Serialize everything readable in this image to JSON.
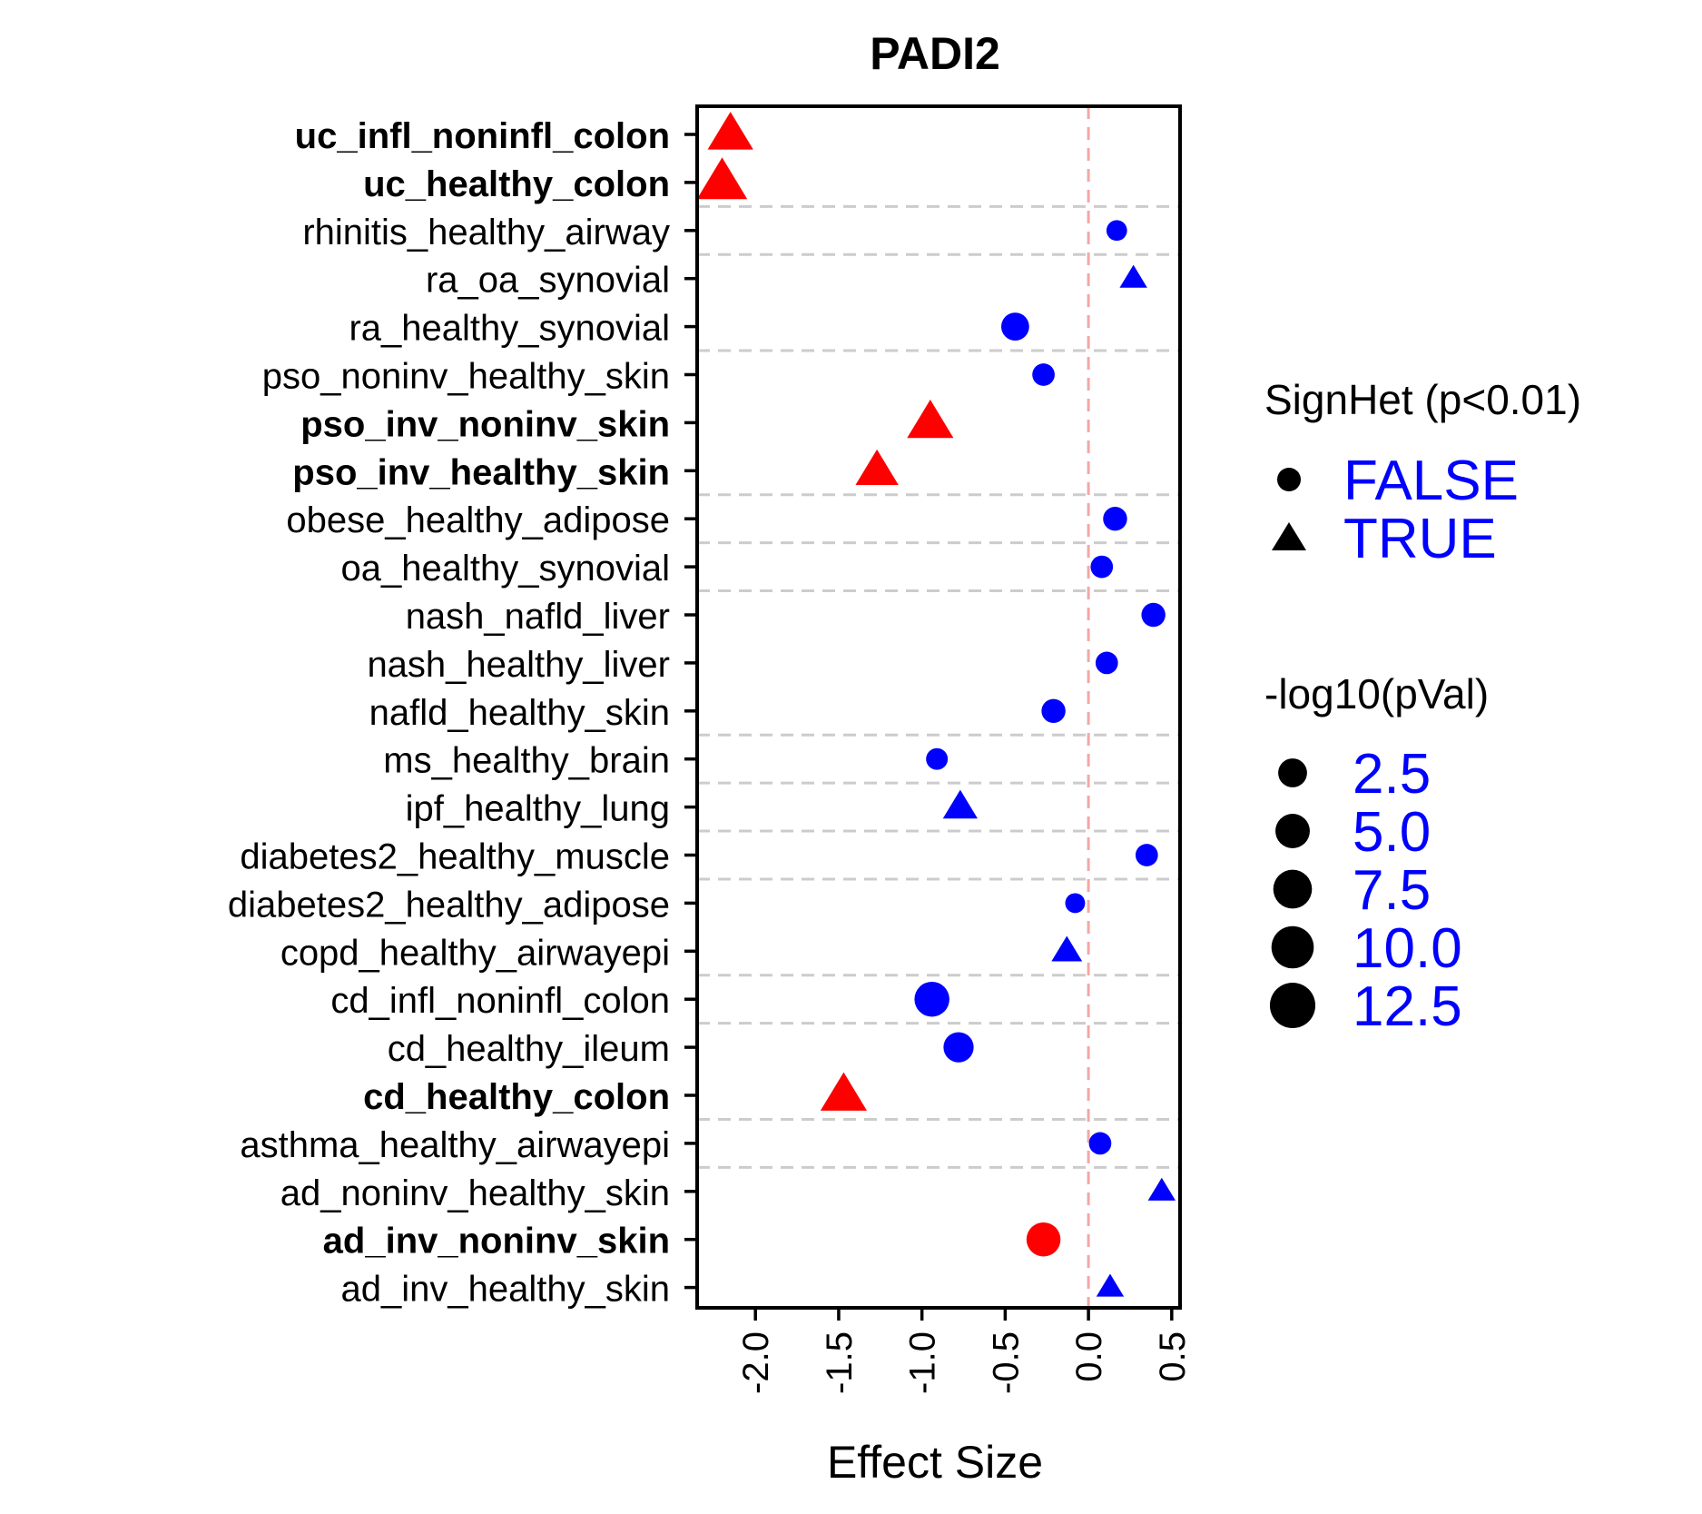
{
  "chart_data": {
    "type": "scatter",
    "title": "PADI2",
    "xlabel": "Effect Size",
    "ylabel": "",
    "xlim": [
      -2.35,
      0.55
    ],
    "x_ticks": [
      "-2.0",
      "-1.5",
      "-1.0",
      "-0.5",
      "0.0",
      "0.5"
    ],
    "x_tick_values": [
      -2.0,
      -1.5,
      -1.0,
      -0.5,
      0.0,
      0.5
    ],
    "reference_line_x": 0.0,
    "grid": "dashed horizontal lines between some rows",
    "legend_position": "right",
    "categories": [
      {
        "label": "uc_infl_noninfl_colon",
        "x": -2.15,
        "sign_het": true,
        "neglog10p": 10.5,
        "bold": true,
        "color": "#ff0000"
      },
      {
        "label": "uc_healthy_colon",
        "x": -2.2,
        "sign_het": true,
        "neglog10p": 13.5,
        "bold": true,
        "color": "#ff0000"
      },
      {
        "label": "rhinitis_healthy_airway",
        "x": 0.17,
        "sign_het": false,
        "neglog10p": 1.5,
        "bold": false,
        "color": "#0000ff"
      },
      {
        "label": "ra_oa_synovial",
        "x": 0.27,
        "sign_het": true,
        "neglog10p": 2.5,
        "bold": false,
        "color": "#0000ff"
      },
      {
        "label": "ra_healthy_synovial",
        "x": -0.44,
        "sign_het": false,
        "neglog10p": 4.0,
        "bold": false,
        "color": "#0000ff"
      },
      {
        "label": "pso_noninv_healthy_skin",
        "x": -0.27,
        "sign_het": false,
        "neglog10p": 2.0,
        "bold": false,
        "color": "#0000ff"
      },
      {
        "label": "pso_inv_noninv_skin",
        "x": -0.95,
        "sign_het": true,
        "neglog10p": 11.0,
        "bold": true,
        "color": "#ff0000"
      },
      {
        "label": "pso_inv_healthy_skin",
        "x": -1.27,
        "sign_het": true,
        "neglog10p": 9.0,
        "bold": true,
        "color": "#ff0000"
      },
      {
        "label": "obese_healthy_adipose",
        "x": 0.16,
        "sign_het": false,
        "neglog10p": 2.5,
        "bold": false,
        "color": "#0000ff"
      },
      {
        "label": "oa_healthy_synovial",
        "x": 0.08,
        "sign_het": false,
        "neglog10p": 2.0,
        "bold": false,
        "color": "#0000ff"
      },
      {
        "label": "nash_nafld_liver",
        "x": 0.39,
        "sign_het": false,
        "neglog10p": 2.5,
        "bold": false,
        "color": "#0000ff"
      },
      {
        "label": "nash_healthy_liver",
        "x": 0.11,
        "sign_het": false,
        "neglog10p": 2.0,
        "bold": false,
        "color": "#0000ff"
      },
      {
        "label": "nafld_healthy_skin",
        "x": -0.21,
        "sign_het": false,
        "neglog10p": 2.5,
        "bold": false,
        "color": "#0000ff"
      },
      {
        "label": "ms_healthy_brain",
        "x": -0.91,
        "sign_het": false,
        "neglog10p": 1.8,
        "bold": false,
        "color": "#0000ff"
      },
      {
        "label": "ipf_healthy_lung",
        "x": -0.77,
        "sign_het": true,
        "neglog10p": 5.0,
        "bold": false,
        "color": "#0000ff"
      },
      {
        "label": "diabetes2_healthy_muscle",
        "x": 0.35,
        "sign_het": false,
        "neglog10p": 2.0,
        "bold": false,
        "color": "#0000ff"
      },
      {
        "label": "diabetes2_healthy_adipose",
        "x": -0.08,
        "sign_het": false,
        "neglog10p": 1.3,
        "bold": false,
        "color": "#0000ff"
      },
      {
        "label": "copd_healthy_airwayepi",
        "x": -0.13,
        "sign_het": true,
        "neglog10p": 3.5,
        "bold": false,
        "color": "#0000ff"
      },
      {
        "label": "cd_infl_noninfl_colon",
        "x": -0.94,
        "sign_het": false,
        "neglog10p": 7.5,
        "bold": false,
        "color": "#0000ff"
      },
      {
        "label": "cd_healthy_ileum",
        "x": -0.78,
        "sign_het": false,
        "neglog10p": 5.0,
        "bold": false,
        "color": "#0000ff"
      },
      {
        "label": "cd_healthy_colon",
        "x": -1.47,
        "sign_het": true,
        "neglog10p": 11.0,
        "bold": true,
        "color": "#ff0000"
      },
      {
        "label": "asthma_healthy_airwayepi",
        "x": 0.07,
        "sign_het": false,
        "neglog10p": 2.0,
        "bold": false,
        "color": "#0000ff"
      },
      {
        "label": "ad_noninv_healthy_skin",
        "x": 0.44,
        "sign_het": true,
        "neglog10p": 2.5,
        "bold": false,
        "color": "#0000ff"
      },
      {
        "label": "ad_inv_noninv_skin",
        "x": -0.27,
        "sign_het": false,
        "neglog10p": 7.0,
        "bold": true,
        "color": "#ff0000"
      },
      {
        "label": "ad_inv_healthy_skin",
        "x": 0.13,
        "sign_het": true,
        "neglog10p": 2.5,
        "bold": false,
        "color": "#0000ff"
      }
    ],
    "dashed_gridlines_between_rows": [
      [
        1,
        2
      ],
      [
        2,
        3
      ],
      [
        4,
        5
      ],
      [
        7,
        8
      ],
      [
        8,
        9
      ],
      [
        9,
        10
      ],
      [
        12,
        13
      ],
      [
        13,
        14
      ],
      [
        14,
        15
      ],
      [
        15,
        16
      ],
      [
        17,
        18
      ],
      [
        18,
        19
      ],
      [
        20,
        21
      ],
      [
        21,
        22
      ]
    ],
    "legends": {
      "shape": {
        "title": "SignHet (p<0.01)",
        "items": [
          {
            "label": "FALSE",
            "shape": "circle"
          },
          {
            "label": "TRUE",
            "shape": "triangle"
          }
        ],
        "label_color": "#0000ff"
      },
      "size": {
        "title": "-log10(pVal)",
        "items": [
          {
            "label": "2.5",
            "value": 2.5
          },
          {
            "label": "5.0",
            "value": 5.0
          },
          {
            "label": "7.5",
            "value": 7.5
          },
          {
            "label": "10.0",
            "value": 10.0
          },
          {
            "label": "12.5",
            "value": 12.5
          }
        ],
        "label_color": "#0000ff"
      }
    },
    "colors": {
      "significant": "#ff0000",
      "nonsignificant": "#0000ff",
      "reference_line": "#f4a6a6",
      "gridline": "#cccccc",
      "axis": "#000000"
    }
  }
}
